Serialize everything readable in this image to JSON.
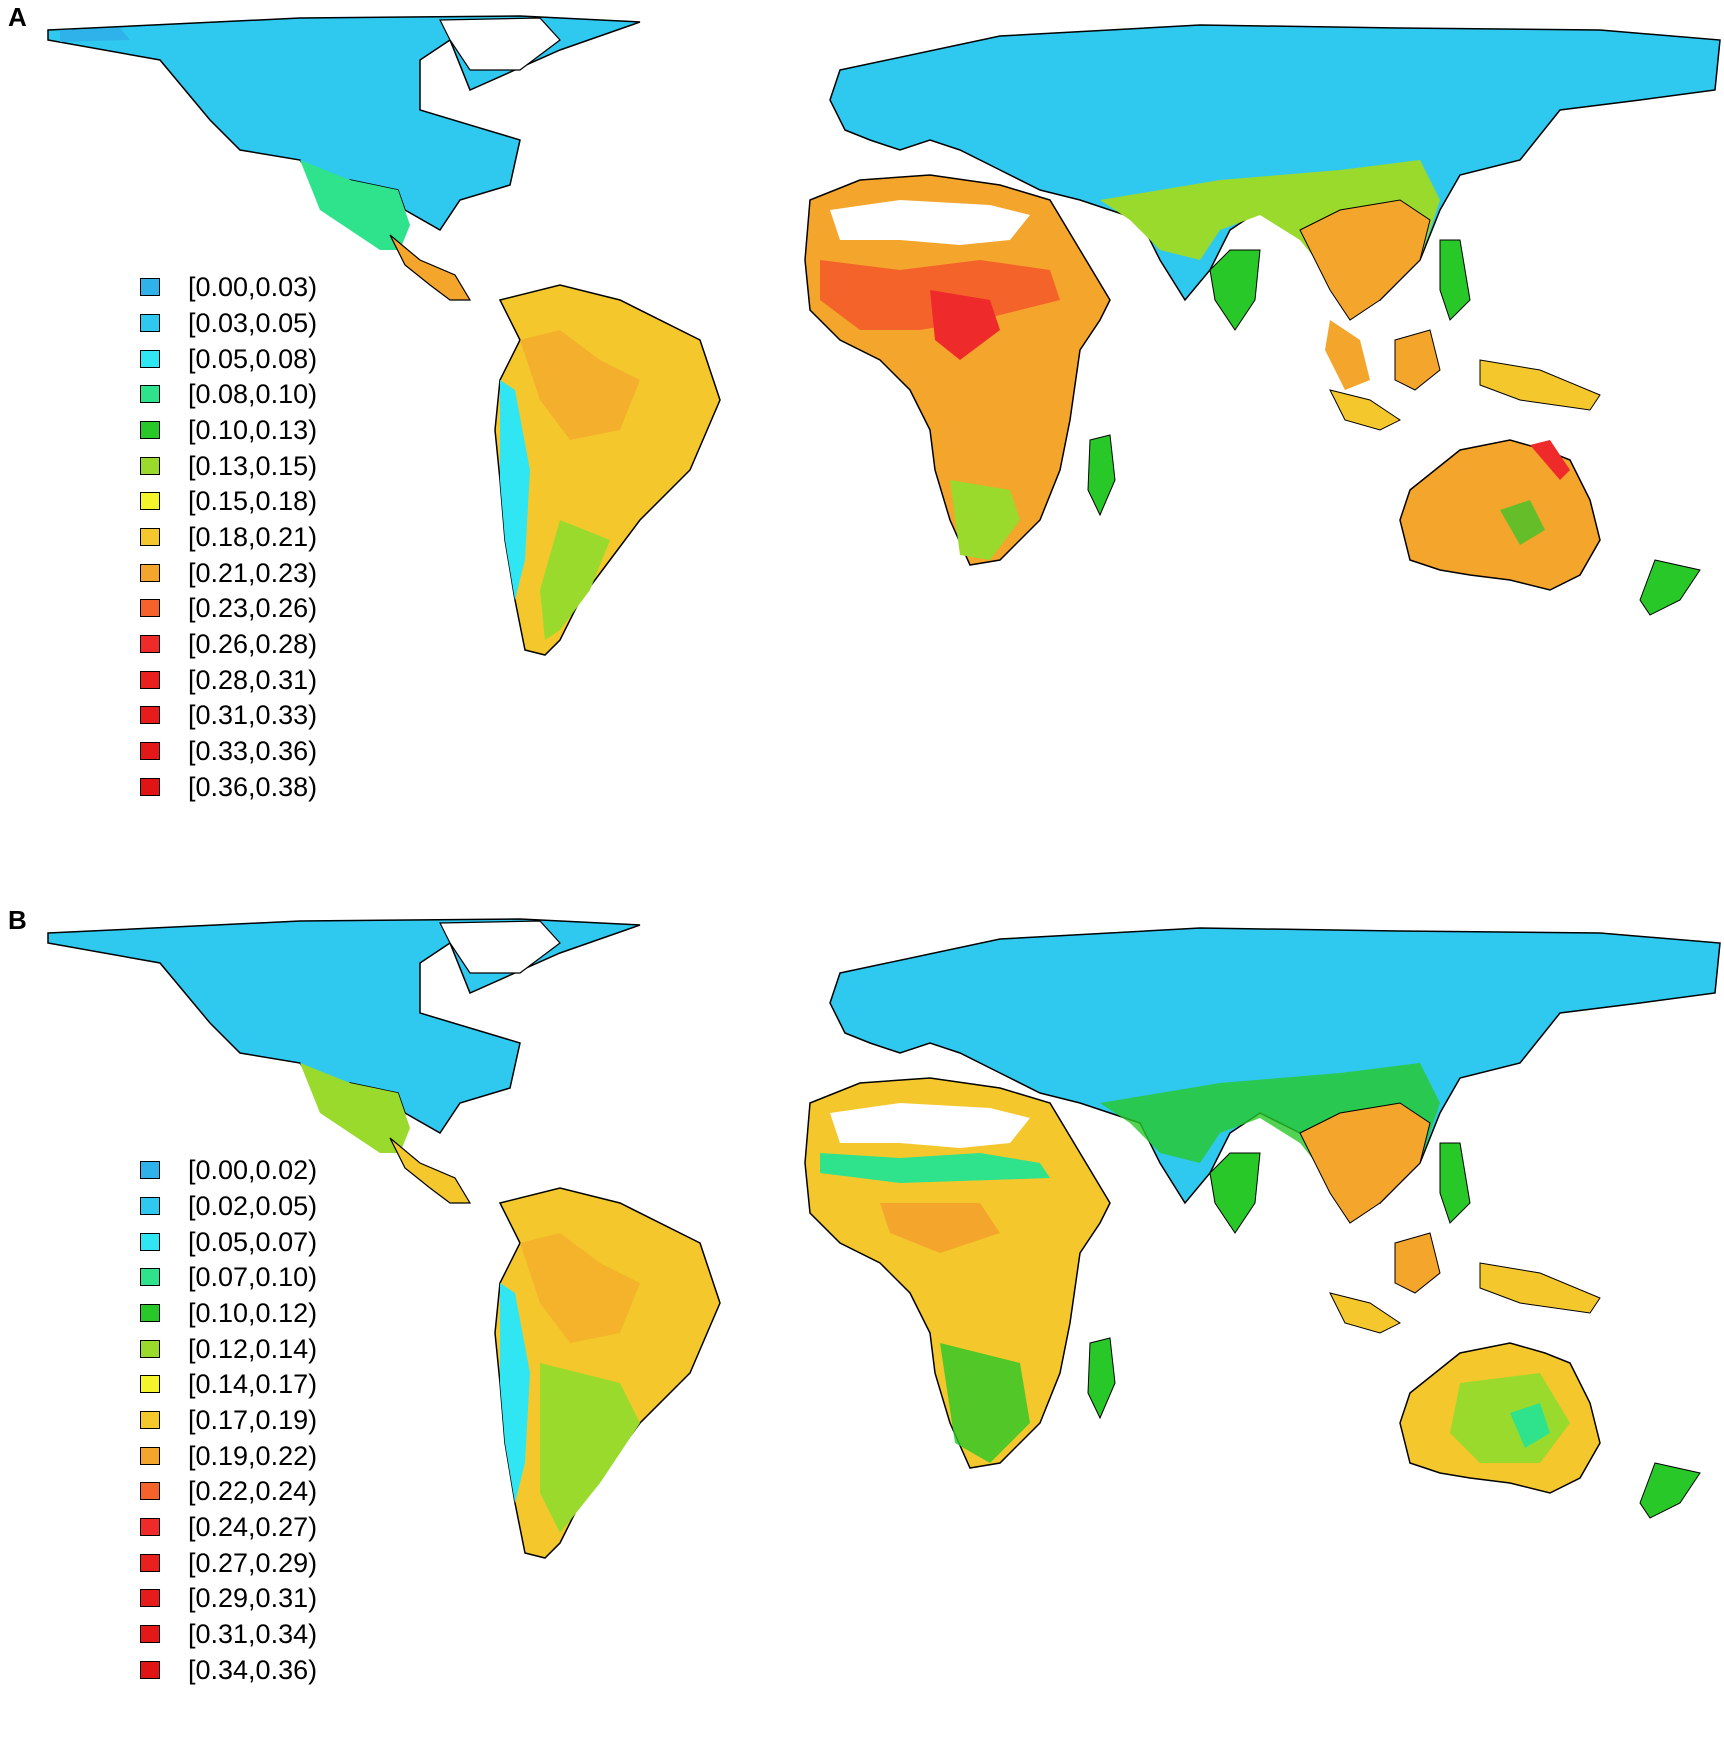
{
  "panels": [
    {
      "label": "A",
      "legend": [
        {
          "label": "[0.00,0.03)",
          "color": "#2fb2ea"
        },
        {
          "label": "[0.03,0.05)",
          "color": "#2fc8ef"
        },
        {
          "label": "[0.05,0.08)",
          "color": "#2fe6f2"
        },
        {
          "label": "[0.08,0.10)",
          "color": "#2ee38c"
        },
        {
          "label": "[0.10,0.13)",
          "color": "#28c828"
        },
        {
          "label": "[0.13,0.15)",
          "color": "#9ada2c"
        },
        {
          "label": "[0.15,0.18)",
          "color": "#f4f42c"
        },
        {
          "label": "[0.18,0.21)",
          "color": "#f4c82c"
        },
        {
          "label": "[0.21,0.23)",
          "color": "#f4a52c"
        },
        {
          "label": "[0.23,0.26)",
          "color": "#f4642a"
        },
        {
          "label": "[0.26,0.28)",
          "color": "#ee2a2a"
        },
        {
          "label": "[0.28,0.31)",
          "color": "#e8201e"
        },
        {
          "label": "[0.31,0.33)",
          "color": "#e61c1c"
        },
        {
          "label": "[0.33,0.36)",
          "color": "#e41818"
        },
        {
          "label": "[0.36,0.38)",
          "color": "#e01414"
        }
      ]
    },
    {
      "label": "B",
      "legend": [
        {
          "label": "[0.00,0.02)",
          "color": "#2fb2ea"
        },
        {
          "label": "[0.02,0.05)",
          "color": "#2fc8ef"
        },
        {
          "label": "[0.05,0.07)",
          "color": "#2fe6f2"
        },
        {
          "label": "[0.07,0.10)",
          "color": "#2ee38c"
        },
        {
          "label": "[0.10,0.12)",
          "color": "#28c828"
        },
        {
          "label": "[0.12,0.14)",
          "color": "#9ada2c"
        },
        {
          "label": "[0.14,0.17)",
          "color": "#f4f42c"
        },
        {
          "label": "[0.17,0.19)",
          "color": "#f4c82c"
        },
        {
          "label": "[0.19,0.22)",
          "color": "#f4a52c"
        },
        {
          "label": "[0.22,0.24)",
          "color": "#f4642a"
        },
        {
          "label": "[0.24,0.27)",
          "color": "#ee2a2a"
        },
        {
          "label": "[0.27,0.29)",
          "color": "#e8201e"
        },
        {
          "label": "[0.29,0.31)",
          "color": "#e61c1c"
        },
        {
          "label": "[0.31,0.34)",
          "color": "#e41818"
        },
        {
          "label": "[0.34,0.36)",
          "color": "#e01414"
        }
      ]
    }
  ]
}
